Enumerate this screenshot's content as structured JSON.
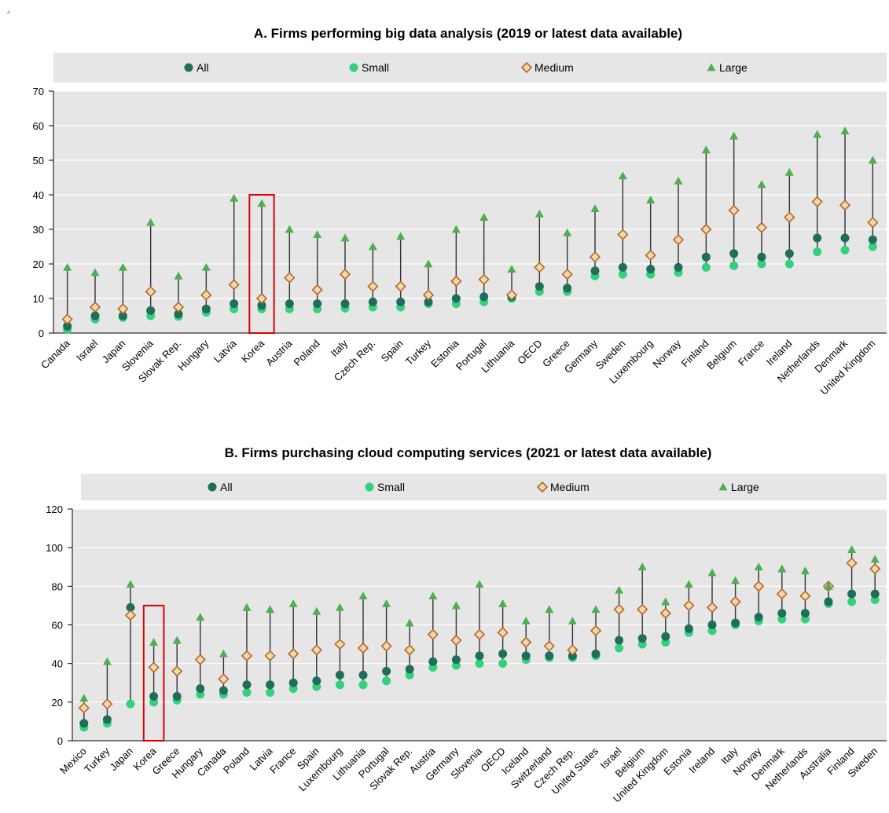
{
  "corner_glyph": "⌟",
  "legend": {
    "all": "All",
    "small": "Small",
    "medium": "Medium",
    "large": "Large"
  },
  "colors": {
    "all": "#1f6e5a",
    "small": "#33d17a",
    "medium_fill": "#f2d9a6",
    "medium_stroke": "#b5652e",
    "large": "#4caf50",
    "stem": "#333333",
    "plot_bg": "#e6e6e6",
    "legend_bg": "#e6e6e6",
    "highlight": "#e00000"
  },
  "chart_data": [
    {
      "type": "scatter",
      "title": "A. Firms performing big data analysis (2019 or latest data available)",
      "ylim": [
        0,
        70
      ],
      "yticks": [
        0,
        10,
        20,
        30,
        40,
        50,
        60,
        70
      ],
      "highlight": "Korea",
      "legend_position": "top",
      "categories": [
        "Canada",
        "Israel",
        "Japan",
        "Slovenia",
        "Slovak Rep.",
        "Hungary",
        "Latvia",
        "Korea",
        "Austria",
        "Poland",
        "Italy",
        "Czech Rep.",
        "Spain",
        "Turkey",
        "Estonia",
        "Portugal",
        "Lithuania",
        "OECD",
        "Greece",
        "Germany",
        "Sweden",
        "Luxembourg",
        "Norway",
        "Finland",
        "Belgium",
        "France",
        "Ireland",
        "Netherlands",
        "Denmark",
        "United Kingdom"
      ],
      "series": [
        {
          "name": "All",
          "values": [
            2,
            5,
            5,
            6.5,
            5.5,
            7,
            8.5,
            8,
            8.5,
            8.5,
            8.5,
            9,
            9,
            9,
            10,
            10.5,
            10.5,
            13.5,
            13,
            18,
            19,
            18.5,
            19,
            22,
            23,
            22,
            23,
            27.5,
            27.5,
            27
          ]
        },
        {
          "name": "Small",
          "values": [
            1,
            4,
            4.5,
            5,
            4.8,
            6,
            7,
            7,
            7,
            7,
            7.2,
            7.5,
            7.5,
            8.5,
            8.5,
            9,
            10,
            12,
            12,
            16.5,
            17,
            17,
            17.5,
            19,
            19.5,
            20,
            20,
            23.5,
            24,
            25
          ]
        },
        {
          "name": "Medium",
          "values": [
            4,
            7.5,
            7,
            12,
            7.5,
            11,
            14,
            10,
            16,
            12.5,
            17,
            13.5,
            13.5,
            11,
            15,
            15.5,
            11,
            19,
            17,
            22,
            28.5,
            22.5,
            27,
            30,
            35.5,
            30.5,
            33.5,
            38,
            37,
            32
          ]
        },
        {
          "name": "Large",
          "values": [
            19,
            17.5,
            19,
            32,
            16.5,
            19,
            39,
            37.5,
            30,
            28.5,
            27.5,
            25,
            28,
            20,
            30,
            33.5,
            18.5,
            34.5,
            29,
            36,
            45.5,
            38.5,
            44,
            53,
            57,
            43,
            46.5,
            57.5,
            58.5,
            50
          ]
        }
      ]
    },
    {
      "type": "scatter",
      "title": "B. Firms purchasing cloud computing services (2021 or latest data available)",
      "ylim": [
        0,
        120
      ],
      "yticks": [
        0,
        20,
        40,
        60,
        80,
        100,
        120
      ],
      "highlight": "Korea",
      "legend_position": "top",
      "categories": [
        "Mexico",
        "Turkey",
        "Japan",
        "Korea",
        "Greece",
        "Hungary",
        "Canada",
        "Poland",
        "Latvia",
        "France",
        "Spain",
        "Luxembourg",
        "Lithuania",
        "Portugal",
        "Slovak Rep.",
        "Austria",
        "Germany",
        "Slovenia",
        "OECD",
        "Iceland",
        "Switzerland",
        "Czech Rep.",
        "United States",
        "Israel",
        "Belgium",
        "United Kingdom",
        "Estonia",
        "Ireland",
        "Italy",
        "Norway",
        "Denmark",
        "Netherlands",
        "Australia",
        "Finland",
        "Sweden"
      ],
      "series": [
        {
          "name": "All",
          "values": [
            9,
            11,
            69,
            23,
            23,
            27,
            26,
            29,
            29,
            30,
            31,
            34,
            34,
            36,
            37,
            41,
            42,
            44,
            45,
            44,
            44,
            44,
            45,
            52,
            53,
            54,
            58,
            60,
            61,
            64,
            66,
            66,
            72,
            76,
            76
          ]
        },
        {
          "name": "Small",
          "values": [
            7,
            9,
            19,
            20,
            21,
            24,
            24,
            25,
            25,
            27,
            28,
            29,
            29,
            31,
            34,
            38,
            39,
            40,
            40,
            42,
            43,
            43,
            44,
            48,
            50,
            51,
            56,
            57,
            60,
            62,
            63,
            63,
            71,
            72,
            73
          ]
        },
        {
          "name": "Medium",
          "values": [
            17,
            19,
            65,
            38,
            36,
            42,
            32,
            44,
            44,
            45,
            47,
            50,
            48,
            49,
            47,
            55,
            52,
            55,
            56,
            51,
            49,
            47,
            57,
            68,
            68,
            66,
            70,
            69,
            72,
            80,
            76,
            75,
            80,
            92,
            89
          ]
        },
        {
          "name": "Large",
          "values": [
            22,
            41,
            81,
            51,
            52,
            64,
            45,
            69,
            68,
            71,
            67,
            69,
            75,
            71,
            61,
            75,
            70,
            81,
            71,
            62,
            68,
            62,
            68,
            78,
            90,
            72,
            81,
            87,
            83,
            90,
            89,
            88,
            80,
            99,
            94
          ]
        }
      ]
    }
  ]
}
